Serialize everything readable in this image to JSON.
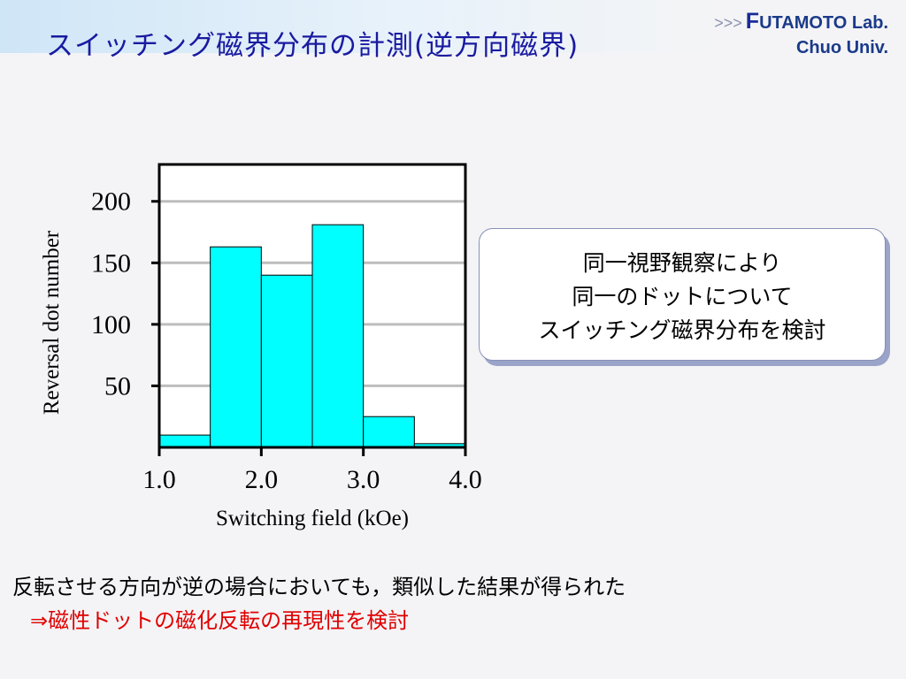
{
  "header": {
    "title": "スイッチング磁界分布の計測(逆方向磁界)",
    "lab_arrows": ">>>",
    "lab_initial": "F",
    "lab_name": "UTAMOTO Lab.",
    "lab_univ": "Chuo Univ."
  },
  "chart_data": {
    "type": "bar",
    "title": "",
    "xlabel": "Switching field (kOe)",
    "ylabel": "Reversal dot number",
    "x_bins": [
      [
        1.0,
        1.5
      ],
      [
        1.5,
        2.0
      ],
      [
        2.0,
        2.5
      ],
      [
        2.5,
        3.0
      ],
      [
        3.0,
        3.5
      ],
      [
        3.5,
        4.0
      ]
    ],
    "values": [
      10,
      163,
      140,
      181,
      25,
      3
    ],
    "xlim": [
      1.0,
      4.0
    ],
    "ylim": [
      0,
      230
    ],
    "x_ticks": [
      1.0,
      2.0,
      3.0,
      4.0
    ],
    "x_tick_labels": [
      "1.0",
      "2.0",
      "3.0",
      "4.0"
    ],
    "y_ticks": [
      50,
      100,
      150,
      200
    ],
    "y_tick_labels": [
      "50",
      "100",
      "150",
      "200"
    ],
    "grid": true,
    "bar_color": "#00ffff"
  },
  "callout": {
    "lines": [
      "同一視野観察により",
      "同一のドットについて",
      "スイッチング磁界分布を検討"
    ]
  },
  "conclusion": {
    "text": "反転させる方向が逆の場合においても，類似した結果が得られた",
    "highlight": "⇒磁性ドットの磁化反転の再現性を検討"
  },
  "colors": {
    "title": "#1a1aa0",
    "highlight": "#e00000"
  }
}
